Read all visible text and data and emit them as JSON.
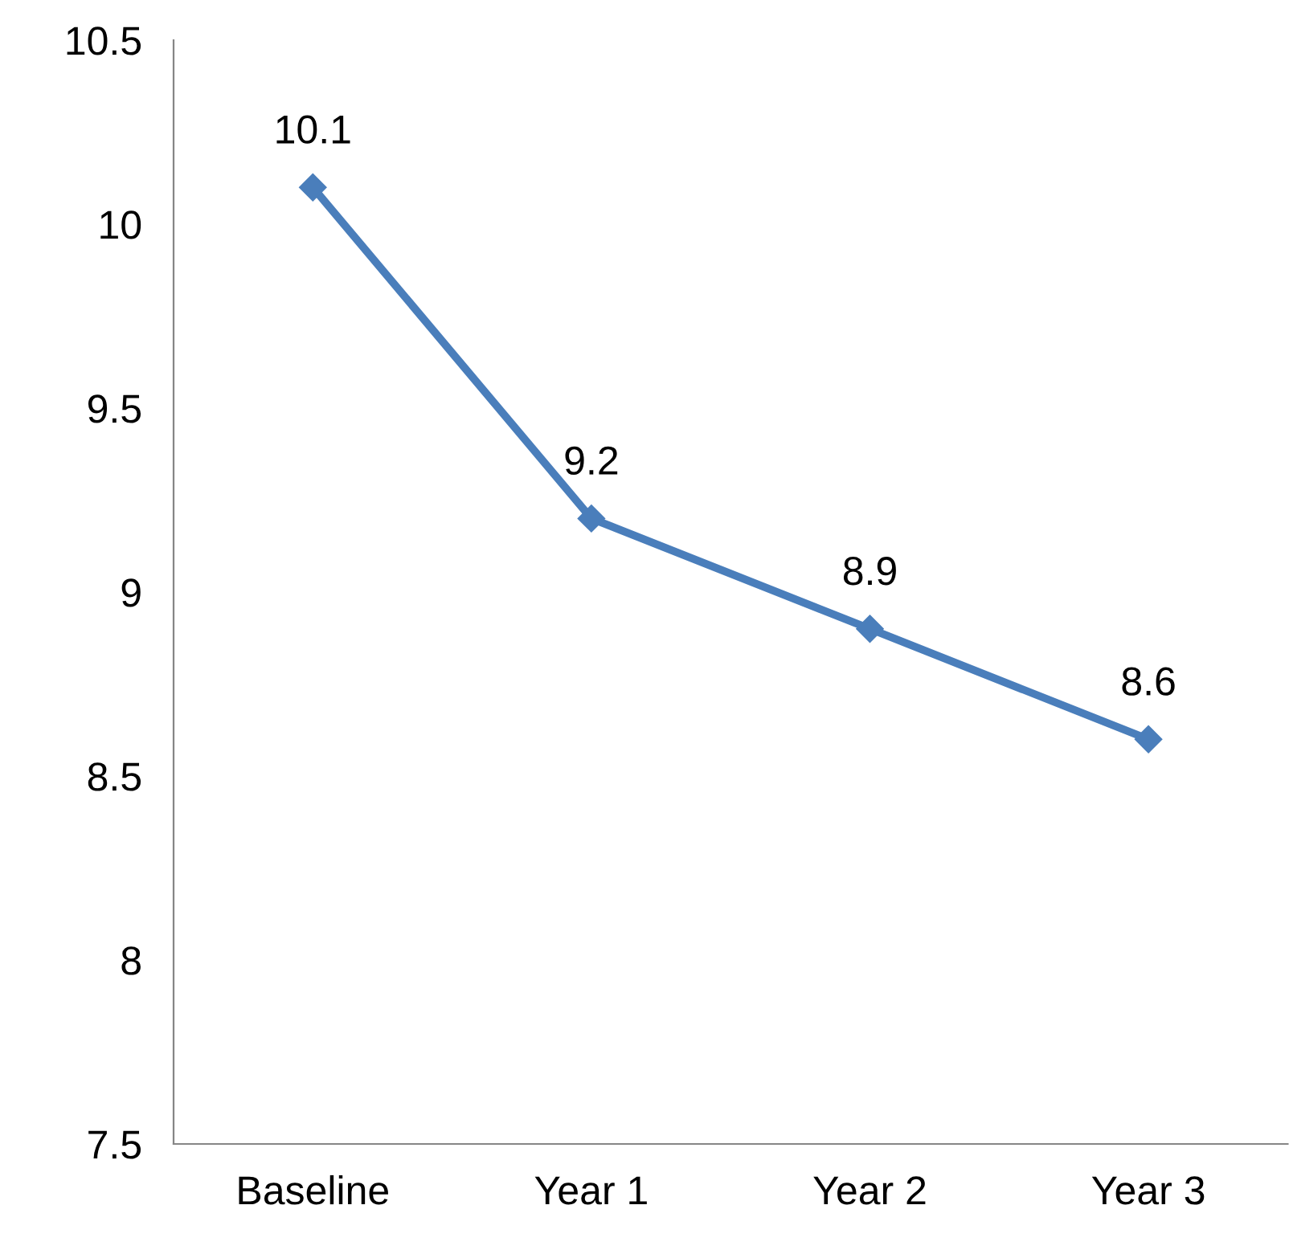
{
  "chart_data": {
    "type": "line",
    "categories": [
      "Baseline",
      "Year 1",
      "Year 2",
      "Year 3"
    ],
    "series": [
      {
        "color": "#4a7ebb",
        "values": [
          10.1,
          9.2,
          8.9,
          8.6
        ]
      }
    ],
    "ylim": [
      7.5,
      10.5
    ],
    "yticks": [
      {
        "value": 7.5,
        "label": "7.5"
      },
      {
        "value": 8,
        "label": "8"
      },
      {
        "value": 8.5,
        "label": "8.5"
      },
      {
        "value": 9,
        "label": "9"
      },
      {
        "value": 9.5,
        "label": "9.5"
      },
      {
        "value": 10,
        "label": "10"
      },
      {
        "value": 10.5,
        "label": "10.5"
      }
    ],
    "grid": false,
    "legend": false,
    "marker": "diamond",
    "line_style": "solid",
    "data_labels": true
  }
}
